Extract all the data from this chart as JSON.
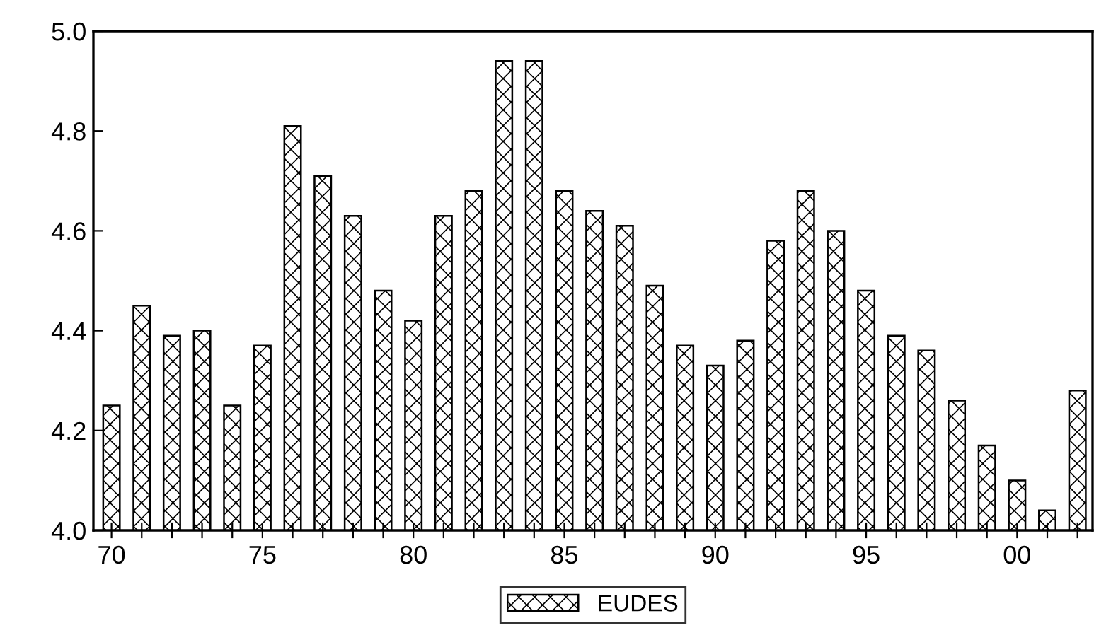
{
  "chart_data": {
    "type": "bar",
    "x": [
      1970,
      1971,
      1972,
      1973,
      1974,
      1975,
      1976,
      1977,
      1978,
      1979,
      1980,
      1981,
      1982,
      1983,
      1984,
      1985,
      1986,
      1987,
      1988,
      1989,
      1990,
      1991,
      1992,
      1993,
      1994,
      1995,
      1996,
      1997,
      1998,
      1999,
      2000,
      2001,
      2002
    ],
    "series": [
      {
        "name": "EUDES",
        "color": "#000000",
        "values": [
          4.25,
          4.45,
          4.39,
          4.4,
          4.25,
          4.37,
          4.81,
          4.71,
          4.63,
          4.48,
          4.42,
          4.63,
          4.68,
          4.94,
          4.94,
          4.68,
          4.64,
          4.61,
          4.49,
          4.37,
          4.33,
          4.38,
          4.58,
          4.68,
          4.6,
          4.48,
          4.39,
          4.36,
          4.26,
          4.17,
          4.1,
          4.04,
          4.28
        ]
      }
    ],
    "ylim": [
      4.0,
      5.0
    ],
    "yticks": [
      {
        "value": 4.0,
        "label": "4.0"
      },
      4.2,
      4.4,
      4.6,
      4.8,
      {
        "value": 5.0,
        "label": "5.0"
      }
    ],
    "xlim": [
      1969.4,
      2002.5
    ],
    "xticks": [
      {
        "value": 1970,
        "label": "70"
      },
      {
        "value": 1971,
        "label": null
      },
      {
        "value": 1972,
        "label": null
      },
      {
        "value": 1973,
        "label": null
      },
      {
        "value": 1974,
        "label": null
      },
      {
        "value": 1975,
        "label": "75"
      },
      {
        "value": 1976,
        "label": null
      },
      {
        "value": 1977,
        "label": null
      },
      {
        "value": 1978,
        "label": null
      },
      {
        "value": 1979,
        "label": null
      },
      {
        "value": 1980,
        "label": "80"
      },
      {
        "value": 1981,
        "label": null
      },
      {
        "value": 1982,
        "label": null
      },
      {
        "value": 1983,
        "label": null
      },
      {
        "value": 1984,
        "label": null
      },
      {
        "value": 1985,
        "label": "85"
      },
      {
        "value": 1986,
        "label": null
      },
      {
        "value": 1987,
        "label": null
      },
      {
        "value": 1988,
        "label": null
      },
      {
        "value": 1989,
        "label": null
      },
      {
        "value": 1990,
        "label": "90"
      },
      {
        "value": 1991,
        "label": null
      },
      {
        "value": 1992,
        "label": null
      },
      {
        "value": 1993,
        "label": null
      },
      {
        "value": 1994,
        "label": null
      },
      {
        "value": 1995,
        "label": "95"
      },
      {
        "value": 1996,
        "label": null
      },
      {
        "value": 1997,
        "label": null
      },
      {
        "value": 1998,
        "label": null
      },
      {
        "value": 1999,
        "label": null
      },
      {
        "value": 2000,
        "label": "00"
      },
      {
        "value": 2001,
        "label": null
      },
      {
        "value": 2002,
        "label": null
      }
    ],
    "grid": false,
    "legend": "bottom"
  }
}
